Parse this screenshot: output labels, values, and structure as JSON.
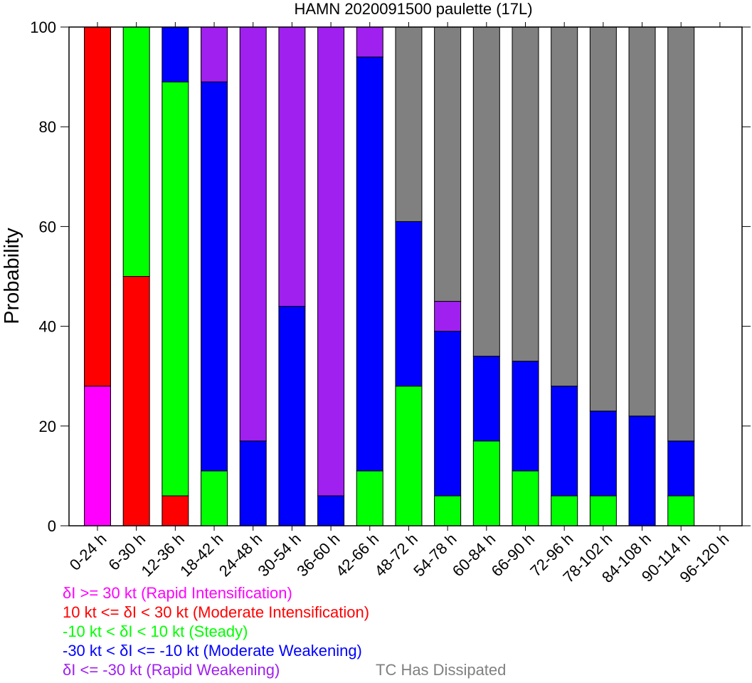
{
  "chart_data": {
    "type": "bar",
    "stacked": true,
    "title": "HAMN 2020091500 paulette (17L)",
    "xlabel": "",
    "ylabel": "Probability",
    "ylim": [
      0,
      100
    ],
    "yticks": [
      0,
      20,
      40,
      60,
      80,
      100
    ],
    "grid": false,
    "categories": [
      "0-24 h",
      "6-30 h",
      "12-36 h",
      "18-42 h",
      "24-48 h",
      "30-54 h",
      "36-60 h",
      "42-66 h",
      "48-72 h",
      "54-78 h",
      "60-84 h",
      "66-90 h",
      "72-96 h",
      "78-102 h",
      "84-108 h",
      "90-114 h",
      "96-120 h"
    ],
    "series": [
      {
        "name": "δI >= 30 kt (Rapid Intensification)",
        "color": "#ff00ff",
        "values": [
          28,
          0,
          0,
          0,
          0,
          0,
          0,
          0,
          0,
          0,
          0,
          0,
          0,
          0,
          0,
          0,
          0
        ]
      },
      {
        "name": "10 kt <= δI < 30 kt (Moderate Intensification)",
        "color": "#ff0000",
        "values": [
          72,
          50,
          6,
          0,
          0,
          0,
          0,
          0,
          0,
          0,
          0,
          0,
          0,
          0,
          0,
          0,
          0
        ]
      },
      {
        "name": "-10 kt < δI < 10 kt (Steady)",
        "color": "#00ff00",
        "values": [
          0,
          50,
          83,
          11,
          0,
          0,
          0,
          11,
          28,
          6,
          17,
          11,
          6,
          6,
          0,
          6,
          0
        ]
      },
      {
        "name": "-30 kt < δI <= -10 kt (Moderate Weakening)",
        "color": "#0000ff",
        "values": [
          0,
          0,
          11,
          78,
          17,
          44,
          6,
          83,
          33,
          33,
          17,
          22,
          22,
          17,
          22,
          11,
          0
        ]
      },
      {
        "name": "δI <= -30 kt (Rapid Weakening)",
        "color": "#a020f0",
        "values": [
          0,
          0,
          0,
          11,
          83,
          56,
          94,
          6,
          0,
          6,
          0,
          0,
          0,
          0,
          0,
          0,
          0
        ]
      },
      {
        "name": "TC Has Dissipated",
        "color": "#808080",
        "values": [
          0,
          0,
          0,
          0,
          0,
          0,
          0,
          0,
          39,
          55,
          66,
          67,
          72,
          77,
          78,
          83,
          0
        ]
      }
    ],
    "legend": {
      "placement": "bottom-left"
    }
  }
}
